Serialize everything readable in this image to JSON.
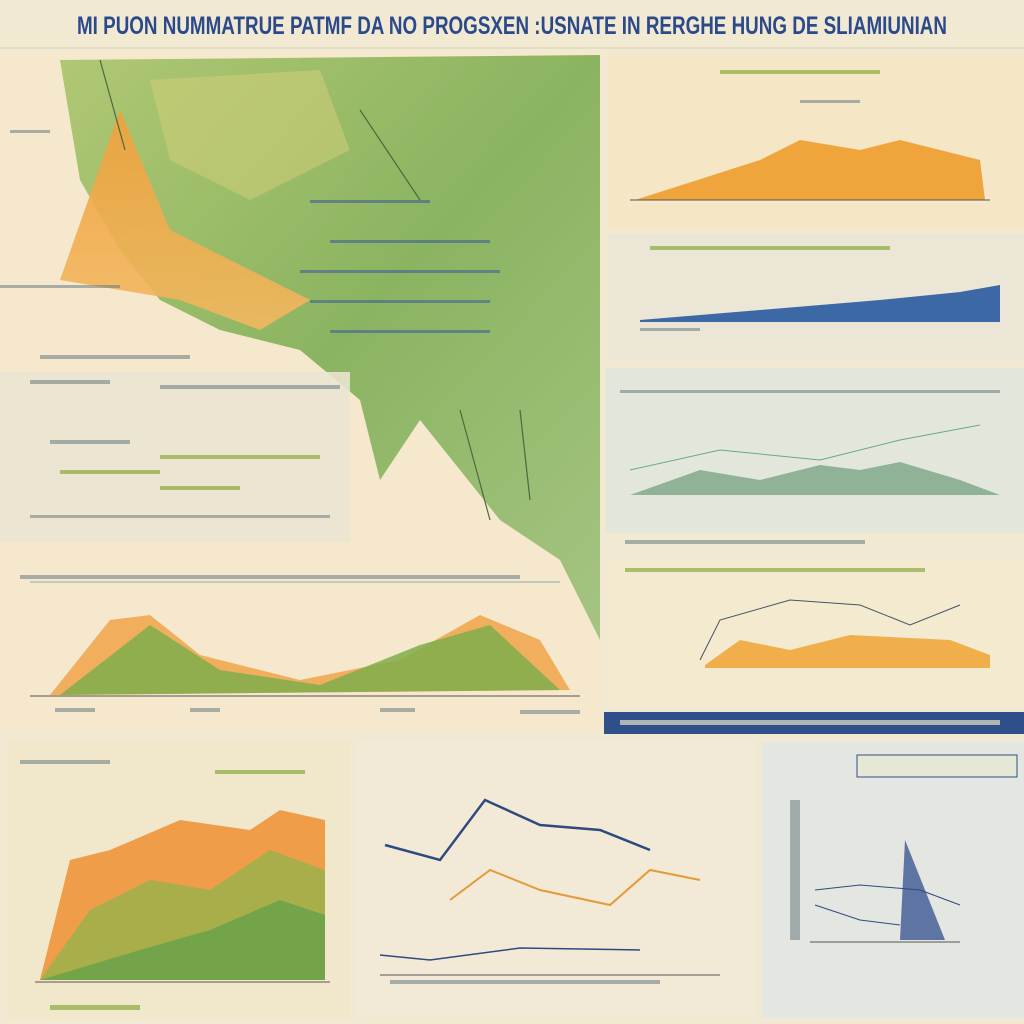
{
  "header": {
    "title": "MI PUON NUMMATRUE PATMF DA NO PROGSXEN :USNATE IN RERGHE HUNG DE SLIAMIUNIAN"
  }
}
